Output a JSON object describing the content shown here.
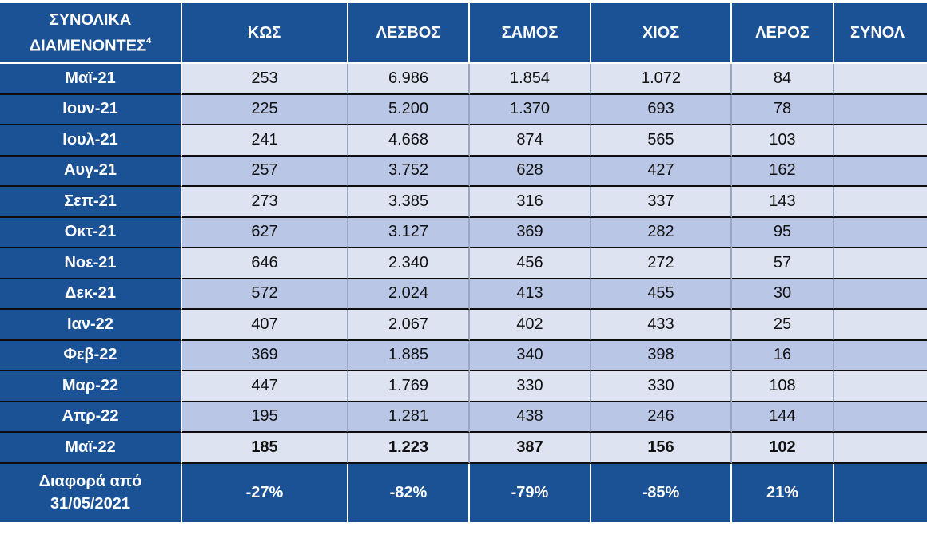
{
  "table": {
    "header": {
      "first_line1": "ΣΥΝΟΛΙΚΑ",
      "first_line2": "ΔΙΑΜΕΝΟΝΤΕΣ",
      "first_sup": "4",
      "columns": [
        "ΚΩΣ",
        "ΛΕΣΒΟΣ",
        "ΣΑΜΟΣ",
        "ΧΙΟΣ",
        "ΛΕΡΟΣ",
        "ΣΥΝΟΛ"
      ]
    },
    "rows": [
      {
        "label": "Μαϊ-21",
        "values": [
          "253",
          "6.986",
          "1.854",
          "1.072",
          "84",
          ""
        ]
      },
      {
        "label": "Ιουν-21",
        "values": [
          "225",
          "5.200",
          "1.370",
          "693",
          "78",
          ""
        ]
      },
      {
        "label": "Ιουλ-21",
        "values": [
          "241",
          "4.668",
          "874",
          "565",
          "103",
          ""
        ]
      },
      {
        "label": "Αυγ-21",
        "values": [
          "257",
          "3.752",
          "628",
          "427",
          "162",
          ""
        ]
      },
      {
        "label": "Σεπ-21",
        "values": [
          "273",
          "3.385",
          "316",
          "337",
          "143",
          ""
        ]
      },
      {
        "label": "Οκτ-21",
        "values": [
          "627",
          "3.127",
          "369",
          "282",
          "95",
          ""
        ]
      },
      {
        "label": "Νοε-21",
        "values": [
          "646",
          "2.340",
          "456",
          "272",
          "57",
          ""
        ]
      },
      {
        "label": "Δεκ-21",
        "values": [
          "572",
          "2.024",
          "413",
          "455",
          "30",
          ""
        ]
      },
      {
        "label": "Ιαν-22",
        "values": [
          "407",
          "2.067",
          "402",
          "433",
          "25",
          ""
        ]
      },
      {
        "label": "Φεβ-22",
        "values": [
          "369",
          "1.885",
          "340",
          "398",
          "16",
          ""
        ]
      },
      {
        "label": "Μαρ-22",
        "values": [
          "447",
          "1.769",
          "330",
          "330",
          "108",
          ""
        ]
      },
      {
        "label": "Απρ-22",
        "values": [
          "195",
          "1.281",
          "438",
          "246",
          "144",
          ""
        ]
      },
      {
        "label": "Μαϊ-22",
        "values": [
          "185",
          "1.223",
          "387",
          "156",
          "102",
          ""
        ]
      }
    ],
    "diff": {
      "label_line1": "Διαφορά από",
      "label_line2": "31/05/2021",
      "values": [
        "-27%",
        "-82%",
        "-79%",
        "-85%",
        "21%",
        ""
      ]
    }
  },
  "colors": {
    "header_blue": "#1b5296",
    "row_light": "#dde3f1",
    "row_dark": "#b9c6e6"
  }
}
